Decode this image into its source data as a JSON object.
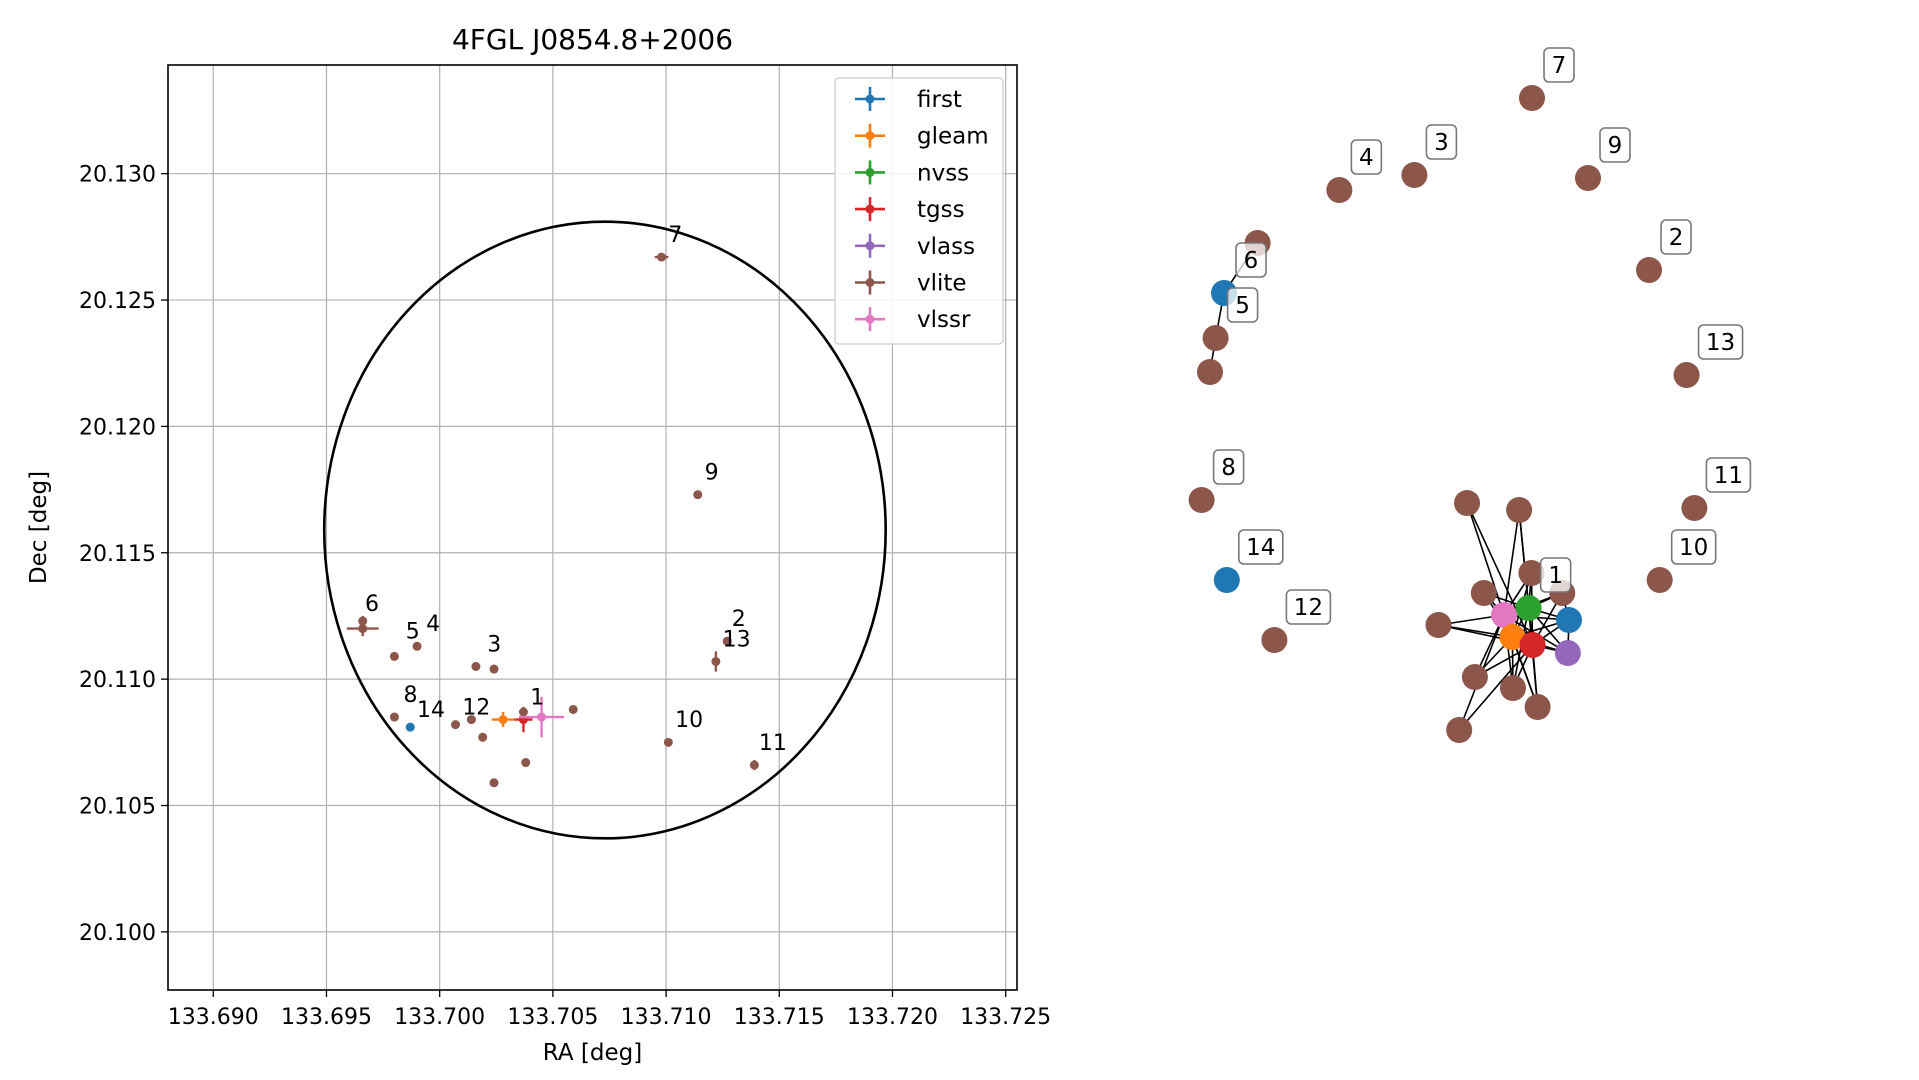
{
  "chart_data": [
    {
      "type": "scatter",
      "title": "4FGL J0854.8+2006",
      "xlabel": "RA [deg]",
      "ylabel": "Dec [deg]",
      "xlim": [
        133.688,
        133.7255
      ],
      "ylim": [
        20.0977,
        20.1343
      ],
      "xticks": [
        "133.690",
        "133.695",
        "133.700",
        "133.705",
        "133.710",
        "133.715",
        "133.720",
        "133.725"
      ],
      "yticks": [
        "20.100",
        "20.105",
        "20.110",
        "20.115",
        "20.120",
        "20.125",
        "20.130"
      ],
      "grid": true,
      "legend_position": "top-right",
      "colors": {
        "first": "#1f77b4",
        "gleam": "#ff7f0e",
        "nvss": "#2ca02c",
        "tgss": "#d62728",
        "vlass": "#9467bd",
        "vlite": "#8c564b",
        "vlssr": "#e377c2"
      },
      "legend": [
        "first",
        "gleam",
        "nvss",
        "tgss",
        "vlass",
        "vlite",
        "vlssr"
      ],
      "circle": {
        "center": [
          133.7073,
          20.1159
        ],
        "radius_ra": 0.0124,
        "radius_dec": 0.0122
      },
      "points": [
        {
          "survey": "vlite",
          "ra": 133.6966,
          "dec": 20.112,
          "era": 0.0007,
          "edec": 0.0003
        },
        {
          "survey": "vlite",
          "ra": 133.6966,
          "dec": 20.1123,
          "era": 0.0,
          "edec": 0.0002
        },
        {
          "survey": "vlite",
          "ra": 133.698,
          "dec": 20.1109,
          "era": 0,
          "edec": 0
        },
        {
          "survey": "vlite",
          "ra": 133.699,
          "dec": 20.1113,
          "era": 0,
          "edec": 0.0001
        },
        {
          "survey": "vlite",
          "ra": 133.7016,
          "dec": 20.1105,
          "era": 0,
          "edec": 0
        },
        {
          "survey": "vlite",
          "ra": 133.7024,
          "dec": 20.1104,
          "era": 0,
          "edec": 0
        },
        {
          "survey": "vlite",
          "ra": 133.698,
          "dec": 20.1085,
          "era": 0,
          "edec": 0
        },
        {
          "survey": "first",
          "ra": 133.6987,
          "dec": 20.1081,
          "era": 0,
          "edec": 0
        },
        {
          "survey": "vlite",
          "ra": 133.7007,
          "dec": 20.1082,
          "era": 0,
          "edec": 0
        },
        {
          "survey": "vlite",
          "ra": 133.7014,
          "dec": 20.1084,
          "era": 0,
          "edec": 0
        },
        {
          "survey": "vlite",
          "ra": 133.7019,
          "dec": 20.1077,
          "era": 0,
          "edec": 0
        },
        {
          "survey": "vlite",
          "ra": 133.7024,
          "dec": 20.1059,
          "era": 0,
          "edec": 0
        },
        {
          "survey": "vlite",
          "ra": 133.7038,
          "dec": 20.1067,
          "era": 0,
          "edec": 0
        },
        {
          "survey": "gleam",
          "ra": 133.7028,
          "dec": 20.1084,
          "era": 0.0005,
          "edec": 0.0003
        },
        {
          "survey": "tgss",
          "ra": 133.7037,
          "dec": 20.1084,
          "era": 0.0004,
          "edec": 0.0005
        },
        {
          "survey": "vlite",
          "ra": 133.7037,
          "dec": 20.1087,
          "era": 0,
          "edec": 0.0002
        },
        {
          "survey": "vlssr",
          "ra": 133.7045,
          "dec": 20.1085,
          "era": 0.001,
          "edec": 0.0008
        },
        {
          "survey": "vlite",
          "ra": 133.7059,
          "dec": 20.1088,
          "era": 0,
          "edec": 0
        },
        {
          "survey": "vlite",
          "ra": 133.7098,
          "dec": 20.1267,
          "era": 0.0003,
          "edec": 0
        },
        {
          "survey": "vlite",
          "ra": 133.7114,
          "dec": 20.1173,
          "era": 0,
          "edec": 0
        },
        {
          "survey": "vlite",
          "ra": 133.7101,
          "dec": 20.1075,
          "era": 0,
          "edec": 0
        },
        {
          "survey": "vlite",
          "ra": 133.7127,
          "dec": 20.1115,
          "era": 0,
          "edec": 0
        },
        {
          "survey": "vlite",
          "ra": 133.7122,
          "dec": 20.1107,
          "era": 0,
          "edec": 0.0004
        },
        {
          "survey": "vlite",
          "ra": 133.7139,
          "dec": 20.1066,
          "era": 0.0001,
          "edec": 0.0002
        }
      ],
      "labels": [
        {
          "text": "6",
          "ra": 133.6967,
          "dec": 20.1127
        },
        {
          "text": "5",
          "ra": 133.6985,
          "dec": 20.1116
        },
        {
          "text": "4",
          "ra": 133.6994,
          "dec": 20.1119
        },
        {
          "text": "3",
          "ra": 133.7021,
          "dec": 20.1111
        },
        {
          "text": "8",
          "ra": 133.6984,
          "dec": 20.1091
        },
        {
          "text": "14",
          "ra": 133.699,
          "dec": 20.1085
        },
        {
          "text": "12",
          "ra": 133.701,
          "dec": 20.1086
        },
        {
          "text": "1",
          "ra": 133.704,
          "dec": 20.109
        },
        {
          "text": "7",
          "ra": 133.7101,
          "dec": 20.1273
        },
        {
          "text": "9",
          "ra": 133.7117,
          "dec": 20.1179
        },
        {
          "text": "2",
          "ra": 133.7129,
          "dec": 20.1121
        },
        {
          "text": "13",
          "ra": 133.7125,
          "dec": 20.1113
        },
        {
          "text": "10",
          "ra": 133.7104,
          "dec": 20.1081
        },
        {
          "text": "11",
          "ra": 133.7141,
          "dec": 20.1072
        }
      ]
    },
    {
      "type": "network",
      "nodes": [
        {
          "id": "n7",
          "survey": "vlite",
          "x": 0.575,
          "y": 0.098,
          "label": "7"
        },
        {
          "id": "n4",
          "survey": "vlite",
          "x": 0.231,
          "y": 0.19,
          "label": "4"
        },
        {
          "id": "n3",
          "survey": "vlite",
          "x": 0.365,
          "y": 0.175,
          "label": "3"
        },
        {
          "id": "n9",
          "survey": "vlite",
          "x": 0.675,
          "y": 0.178,
          "label": "9"
        },
        {
          "id": "n2",
          "survey": "vlite",
          "x": 0.784,
          "y": 0.27,
          "label": "2"
        },
        {
          "id": "n13",
          "survey": "vlite",
          "x": 0.851,
          "y": 0.375,
          "label": "13"
        },
        {
          "id": "n6top",
          "survey": "vlite",
          "x": 0.085,
          "y": 0.243,
          "label": ""
        },
        {
          "id": "n6",
          "survey": "first",
          "x": 0.025,
          "y": 0.293,
          "label": "6"
        },
        {
          "id": "n5",
          "survey": "vlite",
          "x": 0.01,
          "y": 0.338,
          "label": "5"
        },
        {
          "id": "n5b",
          "survey": "vlite",
          "x": 0.0,
          "y": 0.372,
          "label": ""
        },
        {
          "id": "n8",
          "survey": "vlite",
          "x": -0.015,
          "y": 0.5,
          "label": "8"
        },
        {
          "id": "n14",
          "survey": "first",
          "x": 0.03,
          "y": 0.58,
          "label": "14"
        },
        {
          "id": "n12",
          "survey": "vlite",
          "x": 0.115,
          "y": 0.64,
          "label": "12"
        },
        {
          "id": "n11",
          "survey": "vlite",
          "x": 0.865,
          "y": 0.508,
          "label": "11"
        },
        {
          "id": "n10",
          "survey": "vlite",
          "x": 0.803,
          "y": 0.58,
          "label": "10"
        },
        {
          "id": "c1",
          "survey": "vlite",
          "x": 0.459,
          "y": 0.503,
          "label": ""
        },
        {
          "id": "c2",
          "survey": "vlite",
          "x": 0.552,
          "y": 0.51,
          "label": ""
        },
        {
          "id": "c3",
          "survey": "vlite",
          "x": 0.574,
          "y": 0.573,
          "label": ""
        },
        {
          "id": "c4",
          "survey": "vlite",
          "x": 0.629,
          "y": 0.593,
          "label": ""
        },
        {
          "id": "c5",
          "survey": "vlite",
          "x": 0.489,
          "y": 0.593,
          "label": ""
        },
        {
          "id": "c6",
          "survey": "vlite",
          "x": 0.408,
          "y": 0.625,
          "label": ""
        },
        {
          "id": "c7",
          "survey": "vlite",
          "x": 0.473,
          "y": 0.677,
          "label": ""
        },
        {
          "id": "c8",
          "survey": "vlite",
          "x": 0.541,
          "y": 0.688,
          "label": ""
        },
        {
          "id": "c9",
          "survey": "vlite",
          "x": 0.585,
          "y": 0.707,
          "label": ""
        },
        {
          "id": "c10",
          "survey": "vlite",
          "x": 0.445,
          "y": 0.73,
          "label": ""
        },
        {
          "id": "c11",
          "survey": "nvss",
          "x": 0.569,
          "y": 0.608,
          "label": "1"
        },
        {
          "id": "c12",
          "survey": "vlssr",
          "x": 0.525,
          "y": 0.615,
          "label": ""
        },
        {
          "id": "c13",
          "survey": "gleam",
          "x": 0.54,
          "y": 0.637,
          "label": ""
        },
        {
          "id": "c14",
          "survey": "tgss",
          "x": 0.576,
          "y": 0.645,
          "label": ""
        },
        {
          "id": "c15",
          "survey": "first",
          "x": 0.641,
          "y": 0.62,
          "label": ""
        },
        {
          "id": "c16",
          "survey": "vlass",
          "x": 0.639,
          "y": 0.653,
          "label": ""
        }
      ],
      "edges": [
        [
          "n6top",
          "n6"
        ],
        [
          "n6",
          "n5"
        ],
        [
          "n5",
          "n5b"
        ],
        [
          "c1",
          "c12"
        ],
        [
          "c2",
          "c12"
        ],
        [
          "c3",
          "c12"
        ],
        [
          "c4",
          "c12"
        ],
        [
          "c5",
          "c12"
        ],
        [
          "c6",
          "c12"
        ],
        [
          "c7",
          "c12"
        ],
        [
          "c8",
          "c12"
        ],
        [
          "c9",
          "c12"
        ],
        [
          "c10",
          "c12"
        ],
        [
          "c1",
          "c14"
        ],
        [
          "c2",
          "c14"
        ],
        [
          "c3",
          "c14"
        ],
        [
          "c4",
          "c14"
        ],
        [
          "c5",
          "c14"
        ],
        [
          "c6",
          "c14"
        ],
        [
          "c7",
          "c14"
        ],
        [
          "c8",
          "c14"
        ],
        [
          "c9",
          "c14"
        ],
        [
          "c10",
          "c14"
        ],
        [
          "c11",
          "c13"
        ],
        [
          "c11",
          "c14"
        ],
        [
          "c11",
          "c15"
        ],
        [
          "c11",
          "c16"
        ],
        [
          "c11",
          "c12"
        ],
        [
          "c13",
          "c14"
        ],
        [
          "c13",
          "c15"
        ],
        [
          "c13",
          "c16"
        ],
        [
          "c12",
          "c13"
        ],
        [
          "c14",
          "c15"
        ],
        [
          "c14",
          "c16"
        ],
        [
          "c15",
          "c16"
        ],
        [
          "c12",
          "c15"
        ],
        [
          "c12",
          "c16"
        ],
        [
          "c5",
          "c11"
        ],
        [
          "c5",
          "c13"
        ],
        [
          "c3",
          "c11"
        ],
        [
          "c4",
          "c11"
        ],
        [
          "c4",
          "c15"
        ],
        [
          "c8",
          "c13"
        ],
        [
          "c8",
          "c11"
        ],
        [
          "c9",
          "c11"
        ],
        [
          "c9",
          "c13"
        ],
        [
          "c6",
          "c13"
        ],
        [
          "c7",
          "c13"
        ],
        [
          "c2",
          "c11"
        ],
        [
          "c3",
          "c13"
        ]
      ]
    }
  ]
}
